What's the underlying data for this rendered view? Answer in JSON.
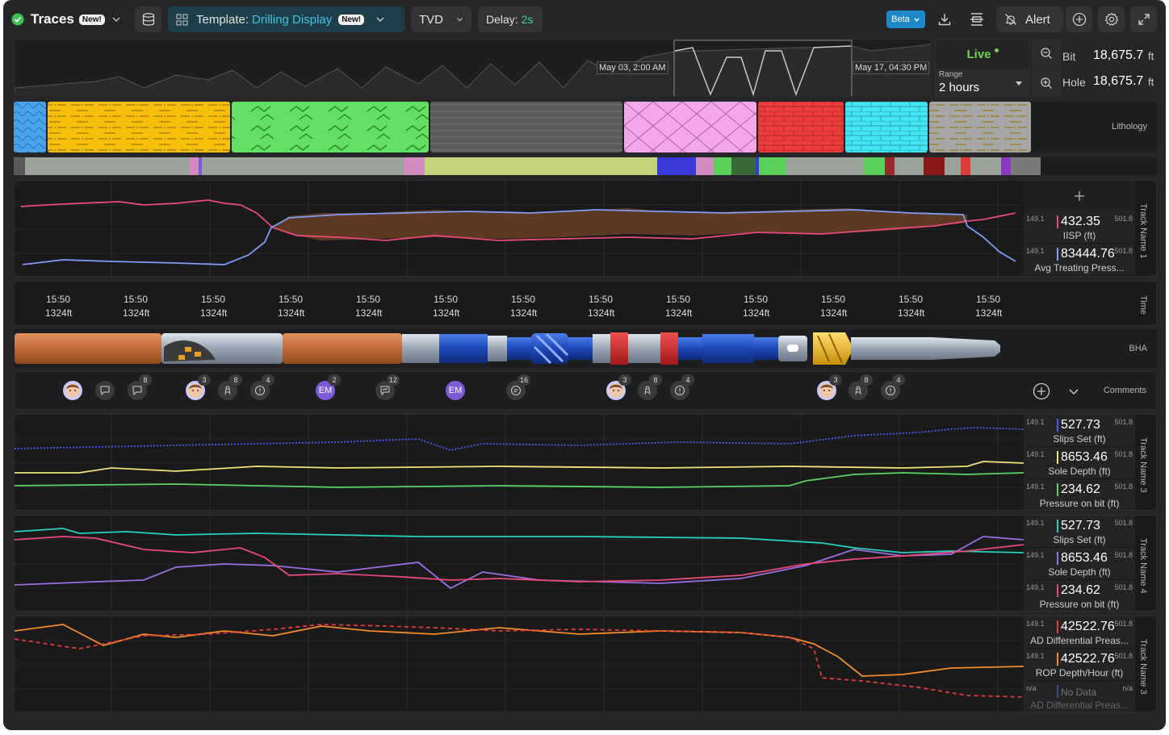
{
  "topbar": {
    "status_icon": "check-circle-icon",
    "app_title": "Traces",
    "app_badge": "New!",
    "template_prefix": "Template:",
    "template_name": "Drilling Display",
    "template_badge": "New!",
    "depth_mode": "TVD",
    "delay_label": "Delay:",
    "delay_value": "2s",
    "beta_label": "Beta",
    "alert_label": "Alert",
    "accent": "#3fc7e0"
  },
  "overview": {
    "start_time": "May 03, 2:00 AM",
    "end_time": "May 17, 04:30 PM",
    "live_label": "Live",
    "range_label": "Range",
    "range_value": "2 hours",
    "bit_label": "Bit",
    "bit_value": "18,675.7",
    "hole_label": "Hole",
    "hole_value": "18,675.7",
    "unit": "ft"
  },
  "lithology": {
    "label": "Lithology",
    "segments": [
      {
        "color": "#4aa3e8",
        "pattern": "wave"
      },
      {
        "color": "#f8bf0a",
        "pattern": "dash"
      },
      {
        "color": "#63e063",
        "pattern": "zigzag"
      },
      {
        "color": "#5a5a5a",
        "pattern": "lines"
      },
      {
        "color": "#f2a8ea",
        "pattern": "cross"
      },
      {
        "color": "#ef3b3b",
        "pattern": "brick"
      },
      {
        "color": "#42e5f2",
        "pattern": "brick"
      },
      {
        "color": "#a6a6a6",
        "pattern": "dash"
      }
    ]
  },
  "track1": {
    "name": "Track Name 1",
    "add_icon": "plus-icon",
    "legend": [
      {
        "min": "149.1",
        "max": "501.8",
        "value": "432.35",
        "name": "IISP (ft)",
        "color": "#e84a79"
      },
      {
        "min": "149.1",
        "max": "501.8",
        "value": "83444.76",
        "name": "Avg Treating Press...",
        "color": "#7f9cf5"
      }
    ]
  },
  "time_axis": {
    "label": "Time",
    "ticks": [
      {
        "time": "15:50",
        "depth": "1324ft"
      },
      {
        "time": "15:50",
        "depth": "1324ft"
      },
      {
        "time": "15:50",
        "depth": "1324ft"
      },
      {
        "time": "15:50",
        "depth": "1324ft"
      },
      {
        "time": "15:50",
        "depth": "1324ft"
      },
      {
        "time": "15:50",
        "depth": "1324ft"
      },
      {
        "time": "15:50",
        "depth": "1324ft"
      },
      {
        "time": "15:50",
        "depth": "1324ft"
      },
      {
        "time": "15:50",
        "depth": "1324ft"
      },
      {
        "time": "15:50",
        "depth": "1324ft"
      },
      {
        "time": "15:50",
        "depth": "1324ft"
      },
      {
        "time": "15:50",
        "depth": "1324ft"
      },
      {
        "time": "15:50",
        "depth": "1324ft"
      }
    ]
  },
  "bha": {
    "label": "BHA"
  },
  "comments": {
    "label": "Comments",
    "initials": "EM",
    "count_8": "8",
    "count_4": "4",
    "count_3": "3",
    "count_2": "2",
    "count_12": "12",
    "count_16": "16"
  },
  "track3": {
    "name": "Track Name 3",
    "legend": [
      {
        "min": "149.1",
        "max": "501.8",
        "value": "527.73",
        "name": "Slips Set (ft)",
        "color": "#4b5bf0"
      },
      {
        "min": "149.1",
        "max": "501.8",
        "value": "8653.46",
        "name": "Sole Depth (ft)",
        "color": "#f2e27a"
      },
      {
        "min": "149.1",
        "max": "501.8",
        "value": "234.62",
        "name": "Pressure on bit (ft)",
        "color": "#5fd35f"
      }
    ]
  },
  "track4": {
    "name": "Track Name 4",
    "legend": [
      {
        "min": "149.1",
        "max": "501.8",
        "value": "527.73",
        "name": "Slips Set (ft)",
        "color": "#28d0c0"
      },
      {
        "min": "149.1",
        "max": "501.8",
        "value": "8653.46",
        "name": "Sole Depth (ft)",
        "color": "#9b6ee0"
      },
      {
        "min": "149.1",
        "max": "501.8",
        "value": "234.62",
        "name": "Pressure on bit (ft)",
        "color": "#e84a79"
      }
    ]
  },
  "track5": {
    "name": "Track Name 3",
    "legend": [
      {
        "min": "149.1",
        "max": "501.8",
        "value": "42522.76",
        "name": "AD Differential Preas...",
        "color": "#e53b3b"
      },
      {
        "min": "149.1",
        "max": "501.8",
        "value": "42522.76",
        "name": "ROP Depth/Hour (ft)",
        "color": "#f28c28"
      },
      {
        "min": "n/a",
        "max": "n/a",
        "value": "No Data",
        "name": "AD Differential Preas...",
        "color": "#3a4a8a"
      }
    ]
  }
}
